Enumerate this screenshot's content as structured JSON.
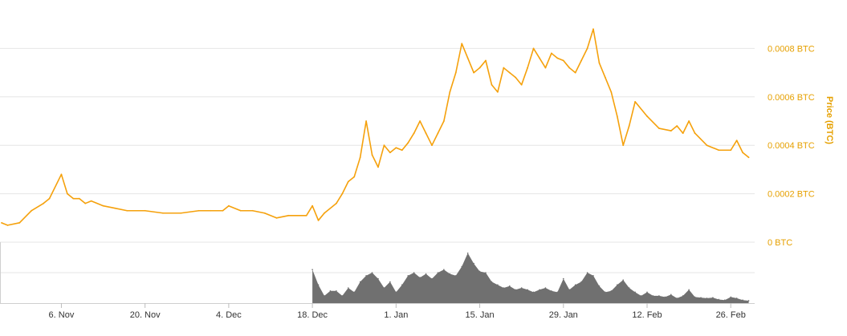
{
  "chart_data": {
    "type": "line",
    "title": "",
    "xlabel": "",
    "ylabel": "Price (BTC)",
    "y_unit": "BTC",
    "ylim": [
      0,
      0.001
    ],
    "yticks": [
      {
        "value": 0,
        "label": "0 BTC"
      },
      {
        "value": 0.0002,
        "label": "0.0002 BTC"
      },
      {
        "value": 0.0004,
        "label": "0.0004 BTC"
      },
      {
        "value": 0.0006,
        "label": "0.0006 BTC"
      },
      {
        "value": 0.0008,
        "label": "0.0008 BTC"
      }
    ],
    "xticks": [
      {
        "date": "2017-11-06",
        "label": "6. Nov"
      },
      {
        "date": "2017-11-20",
        "label": "20. Nov"
      },
      {
        "date": "2017-12-04",
        "label": "4. Dec"
      },
      {
        "date": "2017-12-18",
        "label": "18. Dec"
      },
      {
        "date": "2018-01-01",
        "label": "1. Jan"
      },
      {
        "date": "2018-01-15",
        "label": "15. Jan"
      },
      {
        "date": "2018-01-29",
        "label": "29. Jan"
      },
      {
        "date": "2018-02-12",
        "label": "12. Feb"
      },
      {
        "date": "2018-02-26",
        "label": "26. Feb"
      }
    ],
    "xlim": [
      "2017-10-27",
      "2018-03-02"
    ],
    "grid": true,
    "legend": "none",
    "colors": {
      "price": "#f5a10c",
      "volume": "#707070",
      "axis_label": "#e6a000"
    },
    "series": [
      {
        "kind": "price",
        "x": [
          "2017-10-27",
          "2017-10-28",
          "2017-10-30",
          "2017-11-01",
          "2017-11-03",
          "2017-11-04",
          "2017-11-06",
          "2017-11-07",
          "2017-11-08",
          "2017-11-09",
          "2017-11-10",
          "2017-11-11",
          "2017-11-13",
          "2017-11-15",
          "2017-11-17",
          "2017-11-20",
          "2017-11-23",
          "2017-11-26",
          "2017-11-29",
          "2017-12-01",
          "2017-12-03",
          "2017-12-04",
          "2017-12-06",
          "2017-12-08",
          "2017-12-10",
          "2017-12-12",
          "2017-12-14",
          "2017-12-17",
          "2017-12-18",
          "2017-12-19",
          "2017-12-20",
          "2017-12-22",
          "2017-12-23",
          "2017-12-24",
          "2017-12-25",
          "2017-12-26",
          "2017-12-27",
          "2017-12-28",
          "2017-12-29",
          "2017-12-30",
          "2017-12-31",
          "2018-01-01",
          "2018-01-02",
          "2018-01-03",
          "2018-01-04",
          "2018-01-05",
          "2018-01-06",
          "2018-01-07",
          "2018-01-08",
          "2018-01-09",
          "2018-01-10",
          "2018-01-11",
          "2018-01-12",
          "2018-01-13",
          "2018-01-14",
          "2018-01-15",
          "2018-01-16",
          "2018-01-17",
          "2018-01-18",
          "2018-01-19",
          "2018-01-20",
          "2018-01-21",
          "2018-01-22",
          "2018-01-23",
          "2018-01-24",
          "2018-01-25",
          "2018-01-26",
          "2018-01-27",
          "2018-01-28",
          "2018-01-29",
          "2018-01-30",
          "2018-01-31",
          "2018-02-01",
          "2018-02-02",
          "2018-02-03",
          "2018-02-04",
          "2018-02-05",
          "2018-02-06",
          "2018-02-07",
          "2018-02-08",
          "2018-02-09",
          "2018-02-10",
          "2018-02-12",
          "2018-02-14",
          "2018-02-16",
          "2018-02-17",
          "2018-02-18",
          "2018-02-19",
          "2018-02-20",
          "2018-02-22",
          "2018-02-24",
          "2018-02-26",
          "2018-02-27",
          "2018-02-28",
          "2018-03-01"
        ],
        "values": [
          8e-05,
          7e-05,
          8e-05,
          0.00013,
          0.00016,
          0.00018,
          0.00028,
          0.0002,
          0.00018,
          0.00018,
          0.00016,
          0.00017,
          0.00015,
          0.00014,
          0.00013,
          0.00013,
          0.00012,
          0.00012,
          0.00013,
          0.00013,
          0.00013,
          0.00015,
          0.00013,
          0.00013,
          0.00012,
          0.0001,
          0.00011,
          0.00011,
          0.00015,
          9e-05,
          0.00012,
          0.00016,
          0.0002,
          0.00025,
          0.00027,
          0.00035,
          0.0005,
          0.00036,
          0.00031,
          0.0004,
          0.00037,
          0.00039,
          0.00038,
          0.00041,
          0.00045,
          0.0005,
          0.00045,
          0.0004,
          0.00045,
          0.0005,
          0.00062,
          0.0007,
          0.00082,
          0.00076,
          0.0007,
          0.00072,
          0.00075,
          0.00065,
          0.00062,
          0.00072,
          0.0007,
          0.00068,
          0.00065,
          0.00072,
          0.0008,
          0.00076,
          0.00072,
          0.00078,
          0.00076,
          0.00075,
          0.00072,
          0.0007,
          0.00075,
          0.0008,
          0.00088,
          0.00074,
          0.00068,
          0.00062,
          0.00052,
          0.0004,
          0.00048,
          0.00058,
          0.00052,
          0.00047,
          0.00046,
          0.00048,
          0.00045,
          0.0005,
          0.00045,
          0.0004,
          0.00038,
          0.00038,
          0.00042,
          0.00037,
          0.00035
        ]
      },
      {
        "kind": "volume",
        "x": [
          "2017-12-18",
          "2017-12-19",
          "2017-12-20",
          "2017-12-21",
          "2017-12-22",
          "2017-12-23",
          "2017-12-24",
          "2017-12-25",
          "2017-12-26",
          "2017-12-27",
          "2017-12-28",
          "2017-12-29",
          "2017-12-30",
          "2017-12-31",
          "2018-01-01",
          "2018-01-02",
          "2018-01-03",
          "2018-01-04",
          "2018-01-05",
          "2018-01-06",
          "2018-01-07",
          "2018-01-08",
          "2018-01-09",
          "2018-01-10",
          "2018-01-11",
          "2018-01-12",
          "2018-01-13",
          "2018-01-14",
          "2018-01-15",
          "2018-01-16",
          "2018-01-17",
          "2018-01-18",
          "2018-01-19",
          "2018-01-20",
          "2018-01-21",
          "2018-01-22",
          "2018-01-23",
          "2018-01-24",
          "2018-01-25",
          "2018-01-26",
          "2018-01-27",
          "2018-01-28",
          "2018-01-29",
          "2018-01-30",
          "2018-01-31",
          "2018-02-01",
          "2018-02-02",
          "2018-02-03",
          "2018-02-04",
          "2018-02-05",
          "2018-02-06",
          "2018-02-07",
          "2018-02-08",
          "2018-02-09",
          "2018-02-10",
          "2018-02-11",
          "2018-02-12",
          "2018-02-13",
          "2018-02-14",
          "2018-02-15",
          "2018-02-16",
          "2018-02-17",
          "2018-02-18",
          "2018-02-19",
          "2018-02-20",
          "2018-02-21",
          "2018-02-22",
          "2018-02-23",
          "2018-02-24",
          "2018-02-25",
          "2018-02-26",
          "2018-02-27",
          "2018-02-28",
          "2018-03-01"
        ],
        "values": [
          0.55,
          0.3,
          0.12,
          0.2,
          0.2,
          0.12,
          0.25,
          0.18,
          0.35,
          0.45,
          0.5,
          0.4,
          0.25,
          0.35,
          0.18,
          0.3,
          0.45,
          0.5,
          0.42,
          0.48,
          0.4,
          0.5,
          0.55,
          0.48,
          0.45,
          0.6,
          0.82,
          0.65,
          0.52,
          0.5,
          0.35,
          0.3,
          0.25,
          0.28,
          0.22,
          0.25,
          0.22,
          0.18,
          0.22,
          0.25,
          0.2,
          0.18,
          0.4,
          0.22,
          0.3,
          0.35,
          0.5,
          0.45,
          0.28,
          0.18,
          0.2,
          0.3,
          0.38,
          0.25,
          0.18,
          0.12,
          0.18,
          0.12,
          0.12,
          0.1,
          0.14,
          0.08,
          0.12,
          0.22,
          0.1,
          0.09,
          0.08,
          0.09,
          0.06,
          0.05,
          0.1,
          0.08,
          0.05,
          0.04
        ]
      }
    ]
  }
}
